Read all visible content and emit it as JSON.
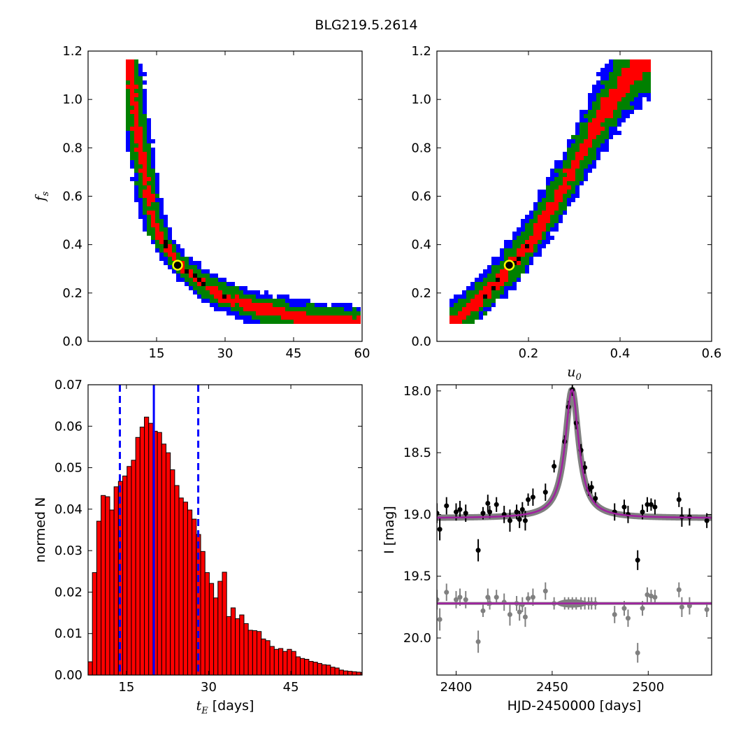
{
  "figure_title": "BLG219.5.2614",
  "chart_data": [
    {
      "id": "fs_vs_tE",
      "type": "heatmap",
      "xlabel": "",
      "ylabel": "f_s",
      "xlim": [
        0,
        60
      ],
      "ylim": [
        0,
        1.2
      ],
      "xticks": [
        15,
        30,
        45,
        60
      ],
      "yticks": [
        0.0,
        0.2,
        0.4,
        0.6,
        0.8,
        1.0,
        1.2
      ],
      "xticklabels": [
        "15",
        "30",
        "45",
        "60"
      ],
      "yticklabels": [
        "0.0",
        "0.2",
        "0.4",
        "0.6",
        "0.8",
        "1.0",
        "1.2"
      ],
      "colors": {
        "outer": "#0000ff",
        "middle": "#008000",
        "inner": "#ff0000",
        "core": "#000000",
        "best_fit": "#ffff00"
      },
      "ridge": [
        [
          9,
          1.16
        ],
        [
          10,
          1.0
        ],
        [
          11,
          0.85
        ],
        [
          12,
          0.73
        ],
        [
          13,
          0.62
        ],
        [
          14,
          0.53
        ],
        [
          15,
          0.47
        ],
        [
          16,
          0.42
        ],
        [
          18,
          0.37
        ],
        [
          20,
          0.32
        ],
        [
          22,
          0.285
        ],
        [
          25,
          0.24
        ],
        [
          28,
          0.2
        ],
        [
          32,
          0.17
        ],
        [
          36,
          0.145
        ],
        [
          40,
          0.125
        ],
        [
          45,
          0.105
        ],
        [
          50,
          0.095
        ],
        [
          55,
          0.085
        ],
        [
          59,
          0.08
        ]
      ],
      "best_fit": {
        "tE": 19.6,
        "fs": 0.315
      }
    },
    {
      "id": "fs_vs_u0",
      "type": "heatmap",
      "xlabel": "u_0",
      "ylabel": "",
      "xlim": [
        0.0,
        0.6
      ],
      "ylim": [
        0,
        1.2
      ],
      "xticks": [
        0.2,
        0.4,
        0.6
      ],
      "yticks": [
        0.0,
        0.2,
        0.4,
        0.6,
        0.8,
        1.0,
        1.2
      ],
      "xticklabels": [
        "0.2",
        "0.4",
        "0.6"
      ],
      "yticklabels": [
        "0.0",
        "0.2",
        "0.4",
        "0.6",
        "0.8",
        "1.0",
        "1.2"
      ],
      "colors": {
        "outer": "#0000ff",
        "middle": "#008000",
        "inner": "#ff0000",
        "core": "#000000",
        "best_fit": "#ffff00"
      },
      "ridge": [
        [
          0.04,
          0.08
        ],
        [
          0.1,
          0.18
        ],
        [
          0.16,
          0.31
        ],
        [
          0.2,
          0.4
        ],
        [
          0.25,
          0.55
        ],
        [
          0.3,
          0.72
        ],
        [
          0.35,
          0.9
        ],
        [
          0.4,
          1.04
        ],
        [
          0.45,
          1.16
        ]
      ],
      "best_fit": {
        "u0": 0.158,
        "fs": 0.315
      }
    },
    {
      "id": "tE_histogram",
      "type": "bar",
      "xlabel": "t_E  [days]",
      "ylabel": "normed N",
      "xlim": [
        8,
        58
      ],
      "ylim": [
        0,
        0.07
      ],
      "xticks": [
        15,
        30,
        45
      ],
      "yticks": [
        0.0,
        0.01,
        0.02,
        0.03,
        0.04,
        0.05,
        0.06,
        0.07
      ],
      "xticklabels": [
        "15",
        "30",
        "45"
      ],
      "yticklabels": [
        "0.00",
        "0.01",
        "0.02",
        "0.03",
        "0.04",
        "0.05",
        "0.06",
        "0.07"
      ],
      "bar_color": "#ff0000",
      "bin_start": 8,
      "bin_width": 0.79,
      "values": [
        0.0032,
        0.0247,
        0.0371,
        0.0433,
        0.043,
        0.0398,
        0.0454,
        0.0467,
        0.048,
        0.0503,
        0.0518,
        0.0573,
        0.0598,
        0.0622,
        0.0607,
        0.0588,
        0.0585,
        0.0557,
        0.0536,
        0.0495,
        0.0457,
        0.0427,
        0.0417,
        0.0398,
        0.0376,
        0.0339,
        0.0298,
        0.0247,
        0.0221,
        0.0186,
        0.0226,
        0.0248,
        0.0141,
        0.0162,
        0.0136,
        0.0145,
        0.0124,
        0.0108,
        0.0107,
        0.0105,
        0.0087,
        0.0083,
        0.0069,
        0.0062,
        0.0064,
        0.0057,
        0.0062,
        0.0057,
        0.0044,
        0.004,
        0.0038,
        0.0033,
        0.0031,
        0.0028,
        0.0025,
        0.0024,
        0.0019,
        0.0017,
        0.0012,
        0.001,
        0.0009,
        0.0008,
        0.0007,
        0.0006
      ],
      "median": 20.0,
      "lower": 13.8,
      "upper": 28.1,
      "line_color": "#0000ff"
    },
    {
      "id": "light_curve",
      "type": "scatter",
      "xlabel": "HJD-2450000 [days]",
      "ylabel": "I [mag]",
      "xlim": [
        2390,
        2533
      ],
      "ylim": [
        20.3,
        17.95
      ],
      "xticks": [
        2400,
        2450,
        2500
      ],
      "yticks": [
        18.0,
        18.5,
        19.0,
        19.5,
        20.0
      ],
      "xticklabels": [
        "2400",
        "2450",
        "2500"
      ],
      "yticklabels": [
        "18.0",
        "18.5",
        "19.0",
        "19.5",
        "20.0"
      ],
      "model": {
        "t0": 2460.3,
        "peak_mag": 17.99,
        "baseline_mag": 19.03,
        "width": 4.3
      },
      "colors": {
        "data": "#000000",
        "residual": "#808080",
        "model": "#a020a0",
        "band": "#808080"
      },
      "residual_offset": 19.72,
      "series": [
        {
          "name": "data",
          "x": [
            2390,
            2391.5,
            2395,
            2400,
            2402,
            2405,
            2411.5,
            2414,
            2416.5,
            2417.5,
            2421,
            2425,
            2428,
            2431.5,
            2433,
            2434.5,
            2436,
            2437.5,
            2440,
            2446.5,
            2451,
            2456.5,
            2458.5,
            2460.5,
            2462.5,
            2465,
            2467,
            2469,
            2470.5,
            2472.5,
            2482.5,
            2487.5,
            2489.5,
            2494.5,
            2497,
            2499.5,
            2501.5,
            2503.5,
            2516,
            2517.5,
            2521.5,
            2530.5
          ],
          "y": [
            18.99,
            19.12,
            18.93,
            18.98,
            18.96,
            18.99,
            19.29,
            18.99,
            18.91,
            18.98,
            18.92,
            19.0,
            19.05,
            18.98,
            19.04,
            18.96,
            19.05,
            18.88,
            18.86,
            18.82,
            18.61,
            18.41,
            18.13,
            17.99,
            18.26,
            18.48,
            18.62,
            18.8,
            18.78,
            18.87,
            18.98,
            18.94,
            19.0,
            19.37,
            18.98,
            18.92,
            18.92,
            18.94,
            18.88,
            19.02,
            19.02,
            19.05
          ],
          "err": [
            0.08,
            0.09,
            0.07,
            0.07,
            0.07,
            0.07,
            0.09,
            0.05,
            0.07,
            0.05,
            0.06,
            0.07,
            0.09,
            0.06,
            0.07,
            0.06,
            0.08,
            0.05,
            0.07,
            0.07,
            0.05,
            0.05,
            0.05,
            0.05,
            0.05,
            0.05,
            0.05,
            0.05,
            0.05,
            0.05,
            0.07,
            0.06,
            0.07,
            0.08,
            0.06,
            0.06,
            0.05,
            0.06,
            0.06,
            0.08,
            0.07,
            0.06
          ]
        },
        {
          "name": "residuals",
          "x": [
            2390,
            2391.5,
            2395,
            2400,
            2402,
            2405,
            2411.5,
            2414,
            2416.5,
            2417.5,
            2421,
            2425,
            2428,
            2431.5,
            2433,
            2434.5,
            2436,
            2437.5,
            2440,
            2446.5,
            2451,
            2456.5,
            2458.5,
            2460.5,
            2462.5,
            2465,
            2467,
            2469,
            2470.5,
            2472.5,
            2482.5,
            2487.5,
            2489.5,
            2494.5,
            2497,
            2499.5,
            2501.5,
            2503.5,
            2516,
            2517.5,
            2521.5,
            2530.5
          ],
          "y": [
            19.69,
            19.85,
            19.63,
            19.69,
            19.67,
            19.69,
            20.03,
            19.78,
            19.67,
            19.72,
            19.67,
            19.71,
            19.81,
            19.72,
            19.79,
            19.73,
            19.83,
            19.68,
            19.67,
            19.62,
            19.72,
            19.72,
            19.72,
            19.72,
            19.72,
            19.72,
            19.72,
            19.72,
            19.72,
            19.72,
            19.81,
            19.76,
            19.84,
            20.12,
            19.76,
            19.65,
            19.66,
            19.67,
            19.61,
            19.75,
            19.74,
            19.77
          ],
          "err": [
            0.08,
            0.09,
            0.07,
            0.07,
            0.07,
            0.07,
            0.09,
            0.05,
            0.07,
            0.05,
            0.06,
            0.07,
            0.09,
            0.06,
            0.07,
            0.06,
            0.08,
            0.05,
            0.07,
            0.07,
            0.05,
            0.05,
            0.05,
            0.05,
            0.05,
            0.05,
            0.05,
            0.05,
            0.05,
            0.05,
            0.07,
            0.06,
            0.07,
            0.08,
            0.06,
            0.06,
            0.05,
            0.06,
            0.06,
            0.08,
            0.07,
            0.06
          ]
        }
      ]
    }
  ]
}
